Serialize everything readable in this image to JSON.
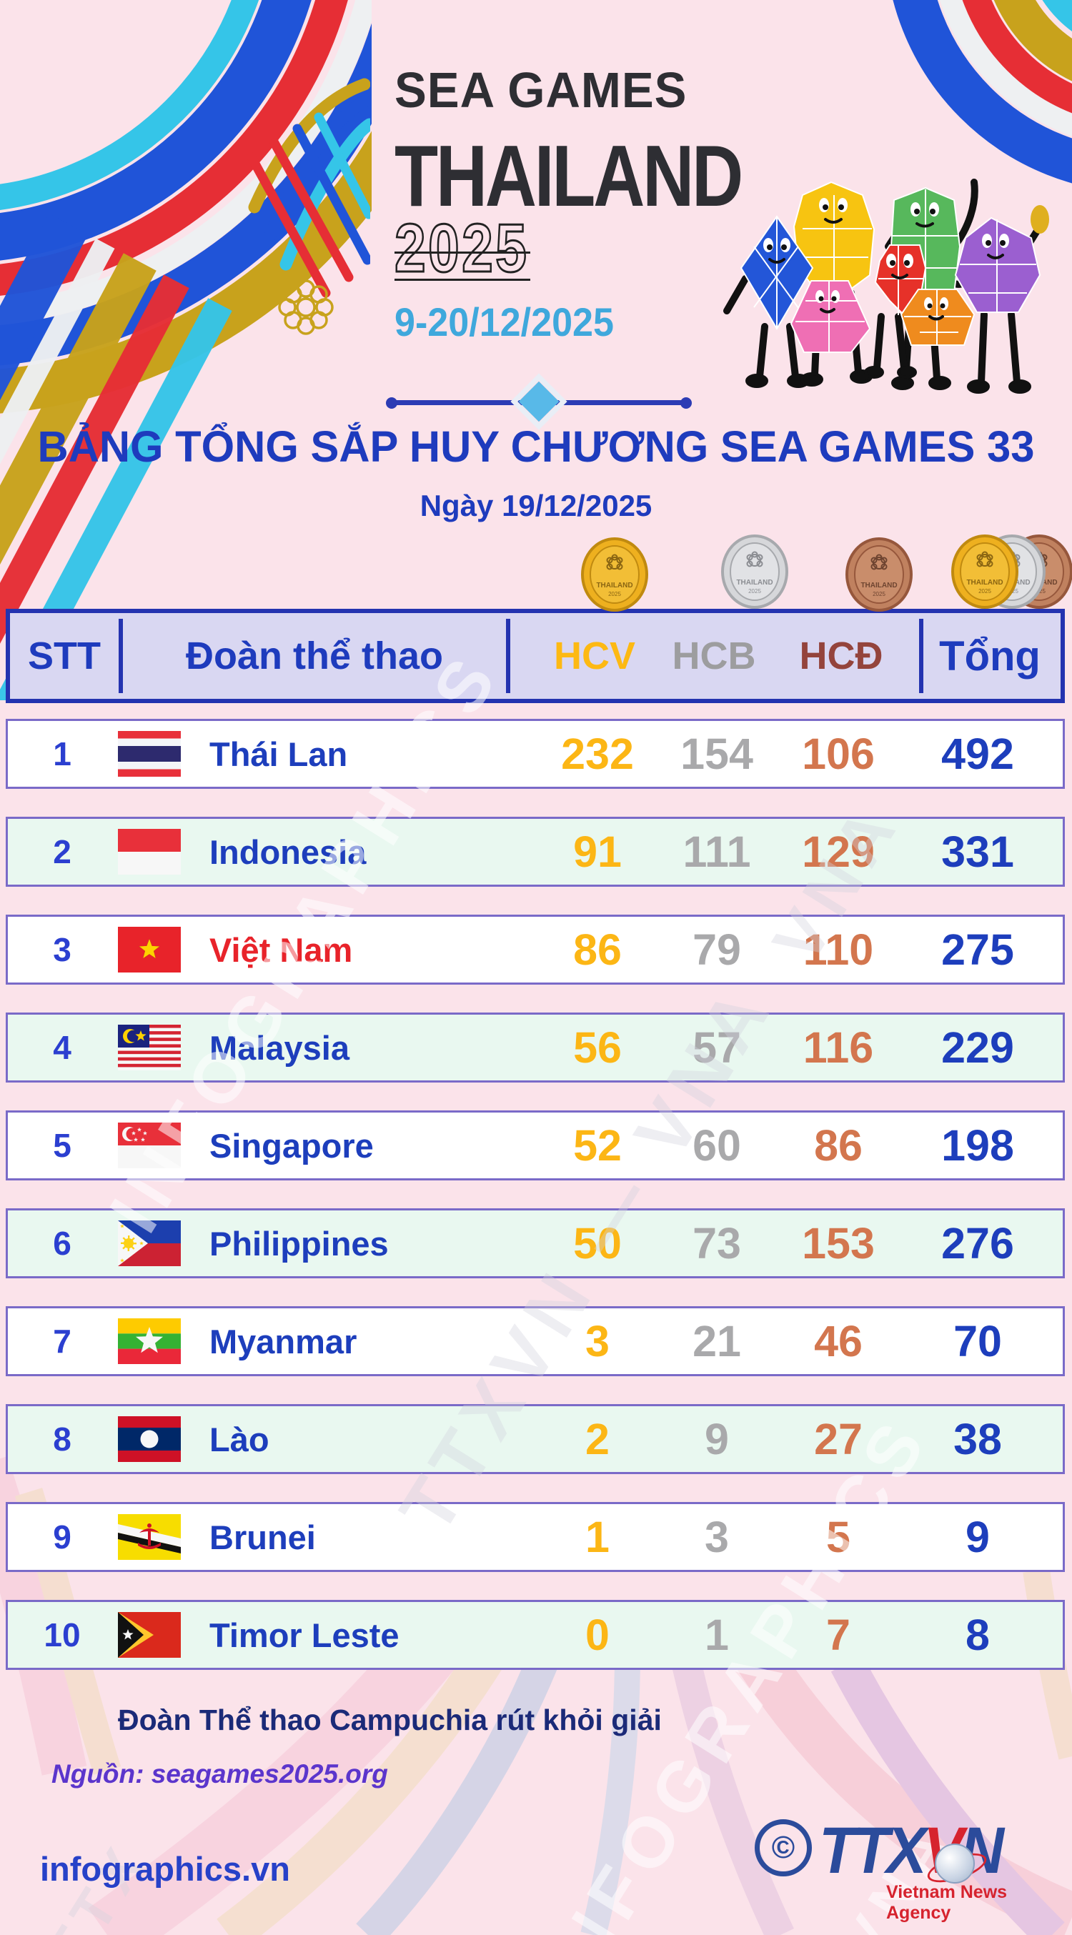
{
  "event": {
    "name": "SEA GAMES",
    "host": "THAILAND",
    "year": "2025",
    "dates": "9-20/12/2025"
  },
  "title": {
    "main": "BẢNG TỔNG SẮP HUY CHƯƠNG SEA GAMES 33",
    "date": "Ngày 19/12/2025"
  },
  "table": {
    "headers": {
      "rank": "STT",
      "team": "Đoàn thể thao",
      "gold": "HCV",
      "silver": "HCB",
      "bronze": "HCĐ",
      "total": "Tổng"
    },
    "rows": [
      {
        "rank": "1",
        "team": "Thái Lan",
        "flag": "thailand",
        "gold": "232",
        "silver": "154",
        "bronze": "106",
        "total": "492"
      },
      {
        "rank": "2",
        "team": "Indonesia",
        "flag": "indonesia",
        "gold": "91",
        "silver": "111",
        "bronze": "129",
        "total": "331"
      },
      {
        "rank": "3",
        "team": "Việt Nam",
        "flag": "vietnam",
        "gold": "86",
        "silver": "79",
        "bronze": "110",
        "total": "275",
        "highlight": true
      },
      {
        "rank": "4",
        "team": "Malaysia",
        "flag": "malaysia",
        "gold": "56",
        "silver": "57",
        "bronze": "116",
        "total": "229"
      },
      {
        "rank": "5",
        "team": "Singapore",
        "flag": "singapore",
        "gold": "52",
        "silver": "60",
        "bronze": "86",
        "total": "198"
      },
      {
        "rank": "6",
        "team": "Philippines",
        "flag": "philippines",
        "gold": "50",
        "silver": "73",
        "bronze": "153",
        "total": "276"
      },
      {
        "rank": "7",
        "team": "Myanmar",
        "flag": "myanmar",
        "gold": "3",
        "silver": "21",
        "bronze": "46",
        "total": "70"
      },
      {
        "rank": "8",
        "team": "Lào",
        "flag": "laos",
        "gold": "2",
        "silver": "9",
        "bronze": "27",
        "total": "38"
      },
      {
        "rank": "9",
        "team": "Brunei",
        "flag": "brunei",
        "gold": "1",
        "silver": "3",
        "bronze": "5",
        "total": "9"
      },
      {
        "rank": "10",
        "team": "Timor Leste",
        "flag": "timor_leste",
        "gold": "0",
        "silver": "1",
        "bronze": "7",
        "total": "8"
      }
    ]
  },
  "note": "Đoàn Thể thao Campuchia rút khỏi giải",
  "source": "Nguồn: seagames2025.org",
  "site": "infographics.vn",
  "agency": {
    "copyright": "©",
    "abbr_part1": "TTX",
    "abbr_part2": "V",
    "abbr_part3": "N",
    "full_name": "Vietnam News Agency"
  },
  "watermarks": [
    "INFOGRAPHICS",
    "TTXVN — VNA",
    "TTXVN",
    "VNA"
  ],
  "icons": [
    "gold-medal-icon",
    "silver-medal-icon",
    "bronze-medal-icon",
    "medal-trio-icon",
    "sea-games-logo",
    "lotus-flower-icon",
    "mascots"
  ],
  "colors": {
    "background": "#fbe3ea",
    "header_bg": "#d9d7f2",
    "header_border": "#2433b0",
    "row_border": "#7a6ac8",
    "row_even_bg": "#e9f8f0",
    "row_odd_bg": "#ffffff",
    "gold": "#fcb615",
    "silver": "#a9a9ab",
    "bronze": "#d3764e",
    "bronze_header": "#94443c",
    "accent_blue": "#1d3ebc",
    "highlight_red": "#e8232a",
    "date_cyan": "#3fa8dc",
    "source_purple": "#5b35cc",
    "agency_blue": "#2b4b9b",
    "agency_red": "#d6232e"
  },
  "chart_data": {
    "type": "table",
    "title": "BẢNG TỔNG SẮP HUY CHƯƠNG SEA GAMES 33",
    "subtitle": "Ngày 19/12/2025",
    "event": "SEA GAMES THAILAND 2025, 9-20/12/2025",
    "columns": [
      "STT",
      "Đoàn thể thao",
      "HCV",
      "HCB",
      "HCĐ",
      "Tổng"
    ],
    "rows": [
      [
        1,
        "Thái Lan",
        232,
        154,
        106,
        492
      ],
      [
        2,
        "Indonesia",
        91,
        111,
        129,
        331
      ],
      [
        3,
        "Việt Nam",
        86,
        79,
        110,
        275
      ],
      [
        4,
        "Malaysia",
        56,
        57,
        116,
        229
      ],
      [
        5,
        "Singapore",
        52,
        60,
        86,
        198
      ],
      [
        6,
        "Philippines",
        50,
        73,
        153,
        276
      ],
      [
        7,
        "Myanmar",
        3,
        21,
        46,
        70
      ],
      [
        8,
        "Lào",
        2,
        9,
        27,
        38
      ],
      [
        9,
        "Brunei",
        1,
        3,
        5,
        9
      ],
      [
        10,
        "Timor Leste",
        0,
        1,
        7,
        8
      ]
    ],
    "note": "Đoàn Thể thao Campuchia rút khỏi giải"
  }
}
